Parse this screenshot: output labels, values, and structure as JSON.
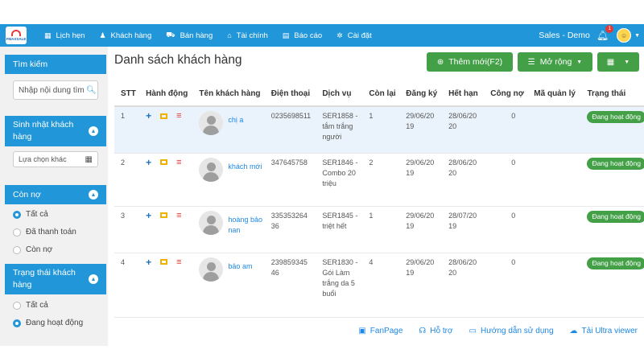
{
  "app": {
    "logo_text": "FMAXSALE"
  },
  "nav": {
    "items": [
      {
        "icon": "calendar-icon",
        "label": "Lịch hẹn"
      },
      {
        "icon": "person-icon",
        "label": "Khách hàng"
      },
      {
        "icon": "cart-icon",
        "label": "Bán hàng"
      },
      {
        "icon": "bank-icon",
        "label": "Tài chính"
      },
      {
        "icon": "report-icon",
        "label": "Báo cáo"
      },
      {
        "icon": "gear-icon",
        "label": "Cài đặt"
      }
    ],
    "account_label": "Sales - Demo",
    "notification_count": "1"
  },
  "sidebar": {
    "search_title": "Tìm kiếm",
    "search_placeholder": "Nhập nội dung tìm",
    "birthday_title": "Sinh nhật khách hàng",
    "birthday_select": "Lựa chọn khác",
    "debt_title": "Còn nợ",
    "debt_options": [
      "Tất cả",
      "Đã thanh toán",
      "Còn nợ"
    ],
    "status_title": "Trạng thái khách hàng",
    "status_options": [
      "Tất cả",
      "Đang hoạt động"
    ]
  },
  "main": {
    "title": "Danh sách khách hàng",
    "add_button": "Thêm mới(F2)",
    "more_button": "Mở rộng"
  },
  "table": {
    "headers": [
      "STT",
      "Hành động",
      "Tên khách hàng",
      "Điện thoại",
      "Dịch vụ",
      "Còn lại",
      "Đăng ký",
      "Hết hạn",
      "Công nợ",
      "Mã quản lý",
      "Trạng thái"
    ],
    "rows": [
      {
        "stt": "1",
        "name": "chị a",
        "phone": "0235698511",
        "service": "SER1858 - tắm trắng người",
        "remaining": "1",
        "registered": "29/06/2019",
        "expires": "28/06/2020",
        "debt": "0",
        "status": "Đang hoạt động"
      },
      {
        "stt": "2",
        "name": "khách mới",
        "phone": "347645758",
        "service": "SER1846 - Combo 20 triệu",
        "remaining": "2",
        "registered": "29/06/2019",
        "expires": "28/06/2020",
        "debt": "0",
        "status": "Đang hoạt động"
      },
      {
        "stt": "3",
        "name": "hoàng bảo nan",
        "phone": "33535326436",
        "service": "SER1845 - triệt hết",
        "remaining": "1",
        "registered": "29/06/2019",
        "expires": "28/07/2019",
        "debt": "0",
        "status": "Đang hoạt động"
      },
      {
        "stt": "4",
        "name": "bảo am",
        "phone": "23985934546",
        "service": "SER1830 - Gói Làm trắng da 5 buổi",
        "remaining": "4",
        "registered": "29/06/2019",
        "expires": "28/06/2020",
        "debt": "0",
        "status": "Đang hoạt động"
      }
    ]
  },
  "footer": {
    "fanpage": "FanPage",
    "support": "Hỗ trợ",
    "guide": "Hướng dẫn sử dụng",
    "ultraviewer": "Tải Ultra viewer"
  }
}
